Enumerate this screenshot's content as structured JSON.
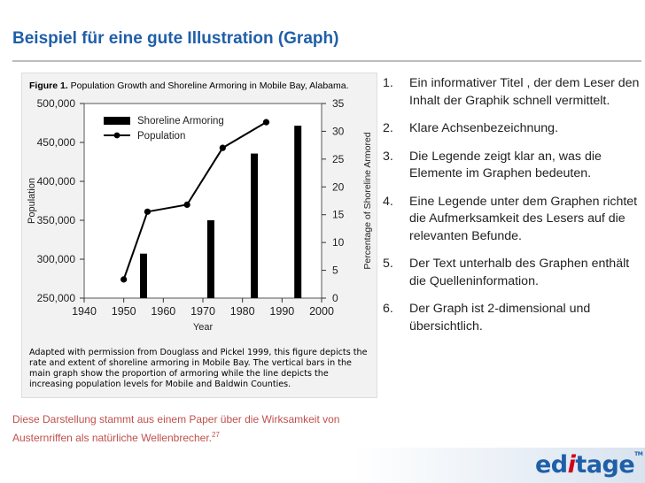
{
  "slide": {
    "title": "Beispiel für eine gute Illustration (Graph)",
    "source_text": "Diese Darstellung stammt  aus einem Paper über die Wirksamkeit von Austernriffen als natürliche Wellenbrecher.",
    "source_ref": "27",
    "logo": {
      "pre": "ed",
      "mid": "i",
      "post": "tage",
      "tm": "TM"
    }
  },
  "figure": {
    "caption_label": "Figure 1.",
    "caption_text": " Population Growth and Shoreline Armoring in Mobile Bay, Alabama.",
    "note": "Adapted with permission from Douglass and Pickel 1999, this figure depicts the rate and extent of shoreline armoring in Mobile Bay. The vertical bars in the main graph show the proportion of armoring while the line depicts the increasing population levels for Mobile and Baldwin Counties."
  },
  "points": [
    {
      "num": "1.",
      "text": "Ein informativer Titel , der dem Leser den Inhalt der Graphik schnell vermittelt."
    },
    {
      "num": "2.",
      "text": "Klare Achsenbezeichnung."
    },
    {
      "num": "3.",
      "text": "Die Legende zeigt klar an, was die Elemente im Graphen bedeuten."
    },
    {
      "num": "4.",
      "text": "Eine Legende unter dem Graphen richtet die Aufmerksamkeit des Lesers auf die relevanten Befunde."
    },
    {
      "num": "5.",
      "text": "Der Text unterhalb des Graphen enthält  die Quelleninformation."
    },
    {
      "num": "6.",
      "text": "Der Graph ist 2-dimensional und übersichtlich."
    }
  ],
  "chart_data": {
    "type": "bar",
    "xlabel": "Year",
    "ylabel": "Population",
    "y2label": "Percentage of Shoreline Armored",
    "xlim": [
      1940,
      2000
    ],
    "x_ticks": [
      1940,
      1950,
      1960,
      1970,
      1980,
      1990,
      2000
    ],
    "ylim": [
      250000,
      500000
    ],
    "y_ticks": [
      250000,
      300000,
      350000,
      400000,
      450000,
      500000
    ],
    "y_tick_labels": [
      "250,000",
      "300,000",
      "350,000",
      "400,000",
      "450,000",
      "500,000"
    ],
    "y2lim": [
      0,
      35
    ],
    "y2_ticks": [
      0,
      5,
      10,
      15,
      20,
      25,
      30,
      35
    ],
    "legend_position": "top-left",
    "series": [
      {
        "name": "Shoreline Armoring",
        "kind": "bar",
        "axis": "right",
        "x": [
          1955,
          1972,
          1983,
          1994
        ],
        "values": [
          8,
          14,
          26,
          31
        ]
      },
      {
        "name": "Population",
        "kind": "line",
        "axis": "left",
        "x": [
          1950,
          1956,
          1966,
          1975,
          1986
        ],
        "values": [
          274000,
          361000,
          370000,
          443000,
          476000
        ]
      }
    ]
  }
}
